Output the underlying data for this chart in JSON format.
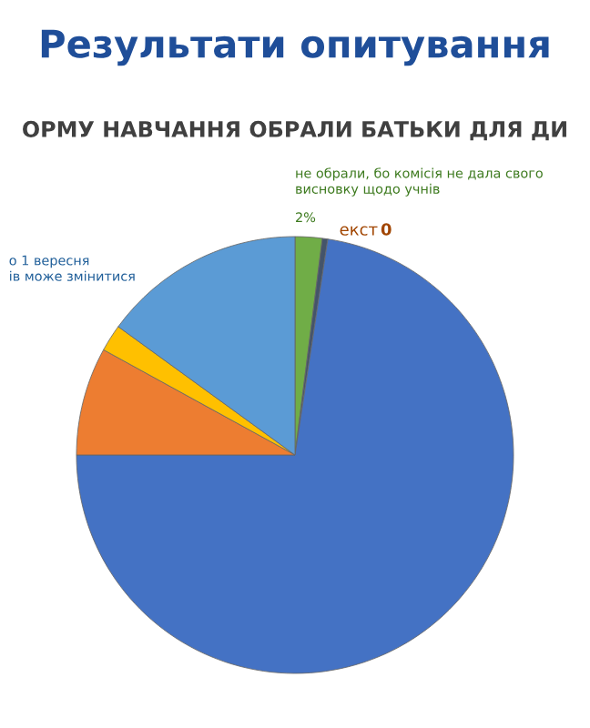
{
  "chart_data": {
    "type": "pie",
    "title": "Результати опитування",
    "subtitle": "ОРМУ НАВЧАННЯ ОБРАЛИ БАТЬКИ ДЛЯ ДИ",
    "categories": [
      "не обрали, бо комісія не дала свого висновку щодо учнів",
      "екст",
      null,
      null,
      null,
      "о 1 вересня\nів може змінитися"
    ],
    "values": [
      2,
      0.4,
      72.6,
      8,
      2,
      15
    ],
    "value_labels": [
      "2%",
      "0",
      null,
      null,
      null,
      null
    ],
    "colors": [
      "#70ad47",
      "#44546a",
      "#4472c4",
      "#ed7d31",
      "#ffc000",
      "#5b9bd5"
    ]
  }
}
